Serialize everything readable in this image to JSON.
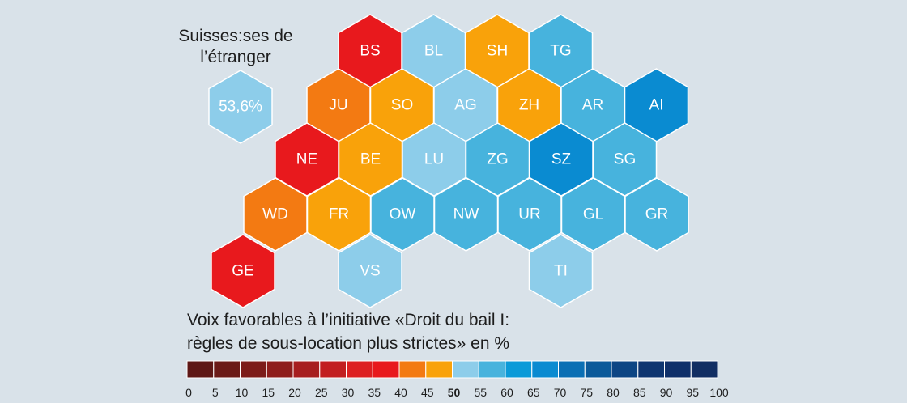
{
  "abroad": {
    "title_line1": "Suisses:ses de",
    "title_line2": "l’étranger",
    "value": "53,6%",
    "color": "#8dcdea"
  },
  "cantons": [
    {
      "code": "BS",
      "row": 0,
      "col": 0,
      "color": "#e8191d"
    },
    {
      "code": "BL",
      "row": 0,
      "col": 1,
      "color": "#8dcdea"
    },
    {
      "code": "SH",
      "row": 0,
      "col": 2,
      "color": "#f9a20a"
    },
    {
      "code": "TG",
      "row": 0,
      "col": 3,
      "color": "#47b3dd"
    },
    {
      "code": "JU",
      "row": 1,
      "col": 0,
      "color": "#f37a12"
    },
    {
      "code": "SO",
      "row": 1,
      "col": 1,
      "color": "#f9a20a"
    },
    {
      "code": "AG",
      "row": 1,
      "col": 2,
      "color": "#8dcdea"
    },
    {
      "code": "ZH",
      "row": 1,
      "col": 3,
      "color": "#f9a20a"
    },
    {
      "code": "AR",
      "row": 1,
      "col": 4,
      "color": "#47b3dd"
    },
    {
      "code": "AI",
      "row": 1,
      "col": 5,
      "color": "#0a8bd1"
    },
    {
      "code": "NE",
      "row": 2,
      "col": 0,
      "color": "#e8191d"
    },
    {
      "code": "BE",
      "row": 2,
      "col": 1,
      "color": "#f9a20a"
    },
    {
      "code": "LU",
      "row": 2,
      "col": 2,
      "color": "#8dcdea"
    },
    {
      "code": "ZG",
      "row": 2,
      "col": 3,
      "color": "#47b3dd"
    },
    {
      "code": "SZ",
      "row": 2,
      "col": 4,
      "color": "#0a8bd1"
    },
    {
      "code": "SG",
      "row": 2,
      "col": 5,
      "color": "#47b3dd"
    },
    {
      "code": "WD",
      "row": 3,
      "col": 0,
      "color": "#f37a12"
    },
    {
      "code": "FR",
      "row": 3,
      "col": 1,
      "color": "#f9a20a"
    },
    {
      "code": "OW",
      "row": 3,
      "col": 2,
      "color": "#47b3dd"
    },
    {
      "code": "NW",
      "row": 3,
      "col": 3,
      "color": "#47b3dd"
    },
    {
      "code": "UR",
      "row": 3,
      "col": 4,
      "color": "#47b3dd"
    },
    {
      "code": "GL",
      "row": 3,
      "col": 5,
      "color": "#47b3dd"
    },
    {
      "code": "GR",
      "row": 3,
      "col": 6,
      "color": "#47b3dd"
    },
    {
      "code": "GE",
      "row": 4,
      "col": 0,
      "color": "#e8191d"
    },
    {
      "code": "VS",
      "row": 4,
      "col": 2,
      "color": "#8dcdea"
    },
    {
      "code": "TI",
      "row": 4,
      "col": 5,
      "color": "#8dcdea"
    }
  ],
  "legend": {
    "title_line1": "Voix favorables à l’initiative «Droit du bail I:",
    "title_line2": "règles de sous-location plus strictes» en %",
    "colors": [
      "#5e1715",
      "#6b1a17",
      "#7d1c19",
      "#8e1d1b",
      "#a71e1f",
      "#c21e20",
      "#dd1f21",
      "#e8191d",
      "#f37a12",
      "#f9a20a",
      "#8dcdea",
      "#47b3dd",
      "#0a9ad8",
      "#0a8bd1",
      "#0b6fb4",
      "#0c5a9a",
      "#0d4584",
      "#0f3570",
      "#10306a",
      "#122e63"
    ],
    "ticks": [
      "0",
      "5",
      "10",
      "15",
      "20",
      "25",
      "30",
      "35",
      "40",
      "45",
      "50",
      "55",
      "60",
      "65",
      "70",
      "75",
      "80",
      "85",
      "90",
      "95",
      "100"
    ],
    "bold_tick": "50"
  }
}
